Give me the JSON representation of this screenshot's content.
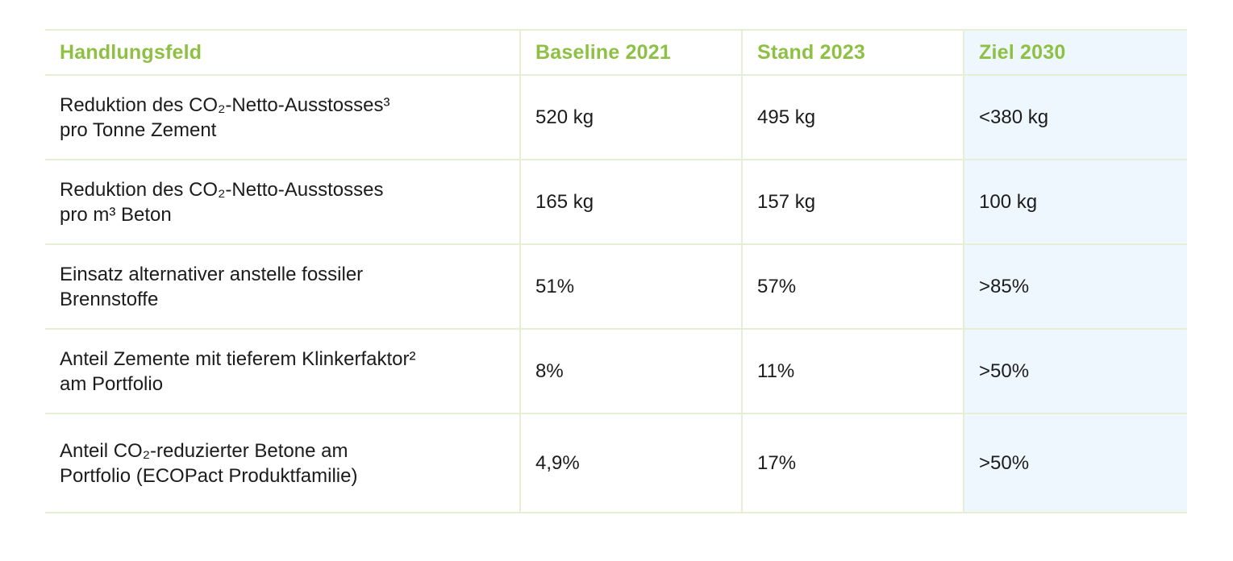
{
  "table": {
    "headers": [
      "Handlungsfeld",
      "Baseline 2021",
      "Stand 2023",
      "Ziel 2030"
    ],
    "rows": [
      {
        "field": [
          "Reduktion des CO₂-Netto-Ausstosses³",
          "pro Tonne Zement"
        ],
        "baseline": "520 kg",
        "stand": "495 kg",
        "ziel": "<380 kg"
      },
      {
        "field": [
          "Reduktion des CO₂-Netto-Ausstosses",
          "pro m³ Beton"
        ],
        "baseline": "165 kg",
        "stand": "157 kg",
        "ziel": "100 kg"
      },
      {
        "field": [
          "Einsatz alternativer anstelle fossiler",
          "Brennstoffe"
        ],
        "baseline": "51%",
        "stand": "57%",
        "ziel": ">85%"
      },
      {
        "field": [
          "Anteil Zemente mit tieferem Klinkerfaktor²",
          "am Portfolio"
        ],
        "baseline": "8%",
        "stand": "11%",
        "ziel": ">50%"
      },
      {
        "field": [
          "Anteil CO₂-reduzierter Betone am",
          "Portfolio (ECOPact Produktfamilie)"
        ],
        "baseline": "4,9%",
        "stand": "17%",
        "ziel": ">50%"
      }
    ]
  },
  "colors": {
    "header_text": "#8dc043",
    "grid_line": "#e6efd6",
    "goal_column_bg": "#eef7fd",
    "body_text": "#1c1c1c"
  }
}
